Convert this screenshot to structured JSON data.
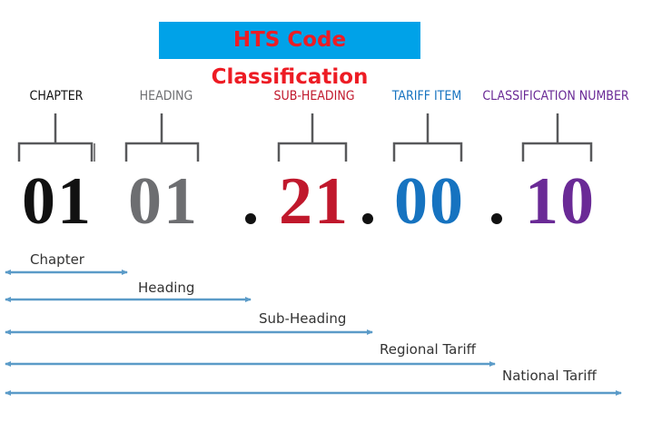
{
  "title": "HTS Code Classification",
  "colors": {
    "chapter": "#111111",
    "heading": "#6d6e71",
    "sub_heading": "#c0182c",
    "tariff_item": "#1673c0",
    "classification_number": "#6a2a96",
    "arrow": "#5b9bc8",
    "title_bg": "#00a2e8",
    "title_text": "#ed1c24"
  },
  "segments": [
    {
      "label": "CHAPTER",
      "digits": "01"
    },
    {
      "label": "HEADING",
      "digits": "01"
    },
    {
      "label": "SUB-HEADING",
      "digits": "21"
    },
    {
      "label": "TARIFF ITEM",
      "digits": "00"
    },
    {
      "label": "CLASSIFICATION NUMBER",
      "digits": "10"
    }
  ],
  "separator": ".",
  "ranges": [
    {
      "label": "Chapter"
    },
    {
      "label": "Heading"
    },
    {
      "label": "Sub-Heading"
    },
    {
      "label": "Regional Tariff"
    },
    {
      "label": "National Tariff"
    }
  ]
}
